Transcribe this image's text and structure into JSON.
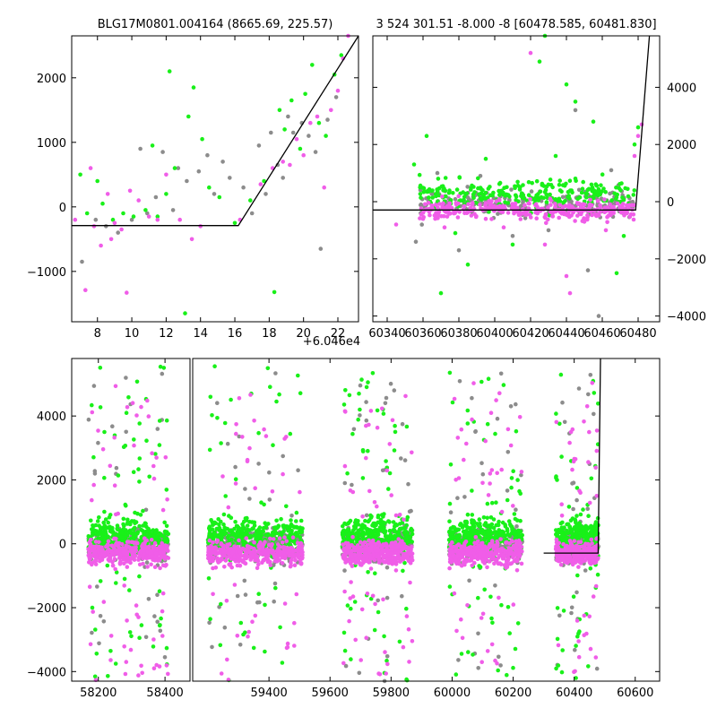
{
  "colors": {
    "magenta": "#f05de8",
    "green": "#19f019",
    "gray": "#8c8c8c",
    "line": "#000000",
    "frame": "#000000"
  },
  "chart_data": [
    {
      "type": "scatter",
      "title": "BLG17M0801.004164 (8665.69, 225.57)",
      "xlabel": "",
      "ylabel": "",
      "x_offset_label": "+6.046e4",
      "xlim": [
        6.5,
        23.2
      ],
      "ylim": [
        -1780,
        2650
      ],
      "xticks": [
        8,
        10,
        12,
        14,
        16,
        18,
        20,
        22
      ],
      "xtick_labels": [
        "8",
        "10",
        "12",
        "14",
        "16",
        "18",
        "20",
        "22"
      ],
      "yticks": [
        -1000,
        0,
        1000,
        2000
      ],
      "ytick_labels": [
        "−1000",
        "0",
        "1000",
        "2000"
      ],
      "yaxis_side": "left",
      "model_line": {
        "x": [
          6.5,
          16.2,
          23.2
        ],
        "y": [
          -290,
          -290,
          2650
        ]
      },
      "series": [
        {
          "color": "magenta",
          "points": [
            [
              6.7,
              -200
            ],
            [
              7.3,
              -1290
            ],
            [
              7.6,
              600
            ],
            [
              7.8,
              -300
            ],
            [
              8.2,
              -600
            ],
            [
              8.6,
              200
            ],
            [
              8.8,
              -500
            ],
            [
              9.0,
              -250
            ],
            [
              9.4,
              -350
            ],
            [
              9.7,
              -1330
            ],
            [
              9.9,
              250
            ],
            [
              10.4,
              100
            ],
            [
              11.0,
              -150
            ],
            [
              11.5,
              -200
            ],
            [
              12.0,
              500
            ],
            [
              12.8,
              -200
            ],
            [
              13.5,
              -500
            ],
            [
              14.0,
              -300
            ],
            [
              16.3,
              -200
            ],
            [
              17.5,
              350
            ],
            [
              18.2,
              600
            ],
            [
              18.8,
              700
            ],
            [
              19.2,
              650
            ],
            [
              19.6,
              1050
            ],
            [
              20.0,
              800
            ],
            [
              20.4,
              1300
            ],
            [
              20.8,
              1400
            ],
            [
              21.2,
              300
            ],
            [
              21.6,
              1500
            ],
            [
              22.0,
              1800
            ],
            [
              22.3,
              2300
            ],
            [
              22.6,
              2650
            ]
          ]
        },
        {
          "color": "green",
          "points": [
            [
              7.0,
              500
            ],
            [
              7.4,
              -100
            ],
            [
              8.0,
              400
            ],
            [
              8.3,
              50
            ],
            [
              8.9,
              -200
            ],
            [
              9.5,
              -100
            ],
            [
              10.1,
              -150
            ],
            [
              10.8,
              -50
            ],
            [
              11.2,
              950
            ],
            [
              11.5,
              -150
            ],
            [
              12.0,
              200
            ],
            [
              12.2,
              2100
            ],
            [
              12.5,
              600
            ],
            [
              13.1,
              -1650
            ],
            [
              13.3,
              1400
            ],
            [
              13.6,
              1850
            ],
            [
              14.1,
              1050
            ],
            [
              14.5,
              300
            ],
            [
              15.1,
              150
            ],
            [
              16.0,
              -250
            ],
            [
              16.9,
              100
            ],
            [
              17.7,
              400
            ],
            [
              18.3,
              -1320
            ],
            [
              18.6,
              1500
            ],
            [
              18.9,
              1200
            ],
            [
              19.3,
              1650
            ],
            [
              19.8,
              900
            ],
            [
              20.1,
              1750
            ],
            [
              20.5,
              2200
            ],
            [
              20.9,
              1300
            ],
            [
              21.3,
              1100
            ],
            [
              21.8,
              2050
            ],
            [
              22.2,
              2350
            ]
          ]
        },
        {
          "color": "gray",
          "points": [
            [
              7.1,
              -850
            ],
            [
              7.9,
              -200
            ],
            [
              8.5,
              -300
            ],
            [
              9.2,
              -400
            ],
            [
              10.0,
              -200
            ],
            [
              10.5,
              900
            ],
            [
              10.9,
              -100
            ],
            [
              11.4,
              150
            ],
            [
              11.8,
              850
            ],
            [
              12.4,
              -50
            ],
            [
              12.7,
              600
            ],
            [
              13.2,
              400
            ],
            [
              13.9,
              550
            ],
            [
              14.4,
              800
            ],
            [
              14.8,
              200
            ],
            [
              15.3,
              700
            ],
            [
              15.7,
              450
            ],
            [
              16.5,
              300
            ],
            [
              17.0,
              -100
            ],
            [
              17.4,
              950
            ],
            [
              17.8,
              200
            ],
            [
              18.1,
              1150
            ],
            [
              18.5,
              650
            ],
            [
              18.8,
              450
            ],
            [
              19.1,
              1400
            ],
            [
              19.4,
              1150
            ],
            [
              19.9,
              1300
            ],
            [
              20.3,
              1100
            ],
            [
              20.7,
              850
            ],
            [
              21.0,
              -650
            ],
            [
              21.4,
              1350
            ],
            [
              21.9,
              1700
            ]
          ]
        }
      ]
    },
    {
      "type": "scatter",
      "title": "3 524 301.51 -8.000 -8 [60478.585, 60481.830]",
      "xlabel": "",
      "ylabel": "",
      "xlim": [
        60332,
        60492
      ],
      "ylim": [
        -4200,
        5800
      ],
      "xticks": [
        60340,
        60360,
        60380,
        60400,
        60420,
        60440,
        60460,
        60480
      ],
      "xtick_labels": [
        "60340",
        "60360",
        "60380",
        "60400",
        "60420",
        "60440",
        "60460",
        "60480"
      ],
      "yticks": [
        -4000,
        -2000,
        0,
        2000,
        4000
      ],
      "ytick_labels": [
        "−4000",
        "−2000",
        "0",
        "2000",
        "4000"
      ],
      "yaxis_side": "right",
      "model_line": {
        "x": [
          60332,
          60478.6,
          60486.3
        ],
        "y": [
          -290,
          -290,
          5800
        ]
      },
      "series": [
        {
          "color": "magenta",
          "points": [
            [
              60345,
              -800
            ],
            [
              60360,
              -600
            ],
            [
              60372,
              -900
            ],
            [
              60395,
              -600
            ],
            [
              60405,
              -900
            ],
            [
              60420,
              5200
            ],
            [
              60428,
              -1500
            ],
            [
              60440,
              -2600
            ],
            [
              60442,
              -3200
            ],
            [
              60450,
              -700
            ],
            [
              60462,
              -1000
            ],
            [
              60478,
              1600
            ],
            [
              60480,
              2300
            ],
            [
              60482,
              2700
            ]
          ]
        },
        {
          "color": "green",
          "points": [
            [
              60355,
              1300
            ],
            [
              60362,
              2300
            ],
            [
              60370,
              -3200
            ],
            [
              60378,
              -1100
            ],
            [
              60385,
              -2200
            ],
            [
              60395,
              1500
            ],
            [
              60410,
              -1500
            ],
            [
              60425,
              4900
            ],
            [
              60428,
              5800
            ],
            [
              60434,
              1600
            ],
            [
              60440,
              4100
            ],
            [
              60445,
              3500
            ],
            [
              60455,
              2800
            ],
            [
              60468,
              -2500
            ],
            [
              60472,
              -1200
            ],
            [
              60478,
              2000
            ],
            [
              60480,
              2600
            ]
          ]
        },
        {
          "color": "gray",
          "points": [
            [
              60356,
              -1400
            ],
            [
              60368,
              1000
            ],
            [
              60380,
              -1700
            ],
            [
              60392,
              900
            ],
            [
              60410,
              -1200
            ],
            [
              60430,
              -1000
            ],
            [
              60445,
              3200
            ],
            [
              60452,
              -2400
            ],
            [
              60458,
              -4000
            ],
            [
              60465,
              1100
            ]
          ]
        }
      ],
      "dense_bands": [
        {
          "color": "green",
          "x_range": [
            60358,
            60478
          ],
          "y_center": 250,
          "y_spread": 420,
          "count": 260
        },
        {
          "color": "gray",
          "x_range": [
            60358,
            60478
          ],
          "y_center": -50,
          "y_spread": 360,
          "count": 240
        },
        {
          "color": "magenta",
          "x_range": [
            60358,
            60478
          ],
          "y_center": -300,
          "y_spread": 260,
          "count": 320
        }
      ]
    },
    {
      "type": "scatter",
      "title": "",
      "xlabel": "",
      "ylabel": "",
      "broken_xaxis": true,
      "xlim_left": [
        58120,
        58475
      ],
      "xlim_right": [
        59150,
        60680
      ],
      "ylim": [
        -4300,
        5800
      ],
      "xticks_left": [
        58200,
        58400
      ],
      "xtick_labels_left": [
        "58200",
        "58400"
      ],
      "xticks_right": [
        59400,
        59600,
        59800,
        60000,
        60200,
        60400,
        60600
      ],
      "xtick_labels_right": [
        "59400",
        "59600",
        "59800",
        "60000",
        "60200",
        "60400",
        "60600"
      ],
      "yticks": [
        -4000,
        -2000,
        0,
        2000,
        4000
      ],
      "ytick_labels": [
        "−4000",
        "−2000",
        "0",
        "2000",
        "4000"
      ],
      "model_line": {
        "x": [
          60300,
          60478.6,
          60486.3
        ],
        "y": [
          -290,
          -290,
          5800
        ]
      },
      "seasons": [
        {
          "x_range": [
            58170,
            58410
          ],
          "count": 300,
          "outliers": 60
        },
        {
          "x_range": [
            59200,
            59510
          ],
          "count": 320,
          "outliers": 45
        },
        {
          "x_range": [
            59640,
            59870
          ],
          "count": 320,
          "outliers": 55
        },
        {
          "x_range": [
            59990,
            60230
          ],
          "count": 320,
          "outliers": 50
        },
        {
          "x_range": [
            60340,
            60480
          ],
          "count": 240,
          "outliers": 40
        }
      ],
      "band": {
        "magenta_center": -300,
        "magenta_spread": 330,
        "gray_center": -50,
        "gray_spread": 430,
        "green_center": 250,
        "green_spread": 500
      }
    }
  ]
}
